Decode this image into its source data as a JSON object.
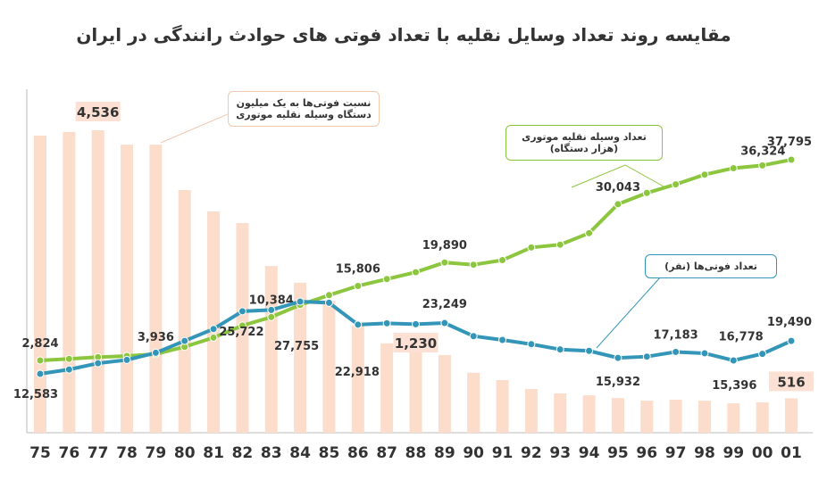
{
  "chart_data": {
    "type": "bar-line",
    "title": "مقایسه روند تعداد وسایل نقلیه با تعداد فوتی های حوادث رانندگی در ایران",
    "categories": [
      "75",
      "76",
      "77",
      "78",
      "79",
      "80",
      "81",
      "82",
      "83",
      "84",
      "85",
      "86",
      "87",
      "88",
      "89",
      "90",
      "91",
      "92",
      "93",
      "94",
      "95",
      "96",
      "97",
      "98",
      "99",
      "00",
      "01"
    ],
    "series": [
      {
        "name": "نسبت فوتی‌ها به یک میلیون دستگاه وسیله نقلیه موتوری",
        "kind": "bar",
        "color": "#fcdccb",
        "values": [
          4456,
          4510,
          4536,
          4320,
          4320,
          3640,
          3318,
          3145,
          2500,
          2250,
          1980,
          1605,
          1340,
          1230,
          1165,
          900,
          790,
          655,
          590,
          560,
          520,
          480,
          495,
          480,
          440,
          455,
          516
        ],
        "value_labels": [
          null,
          null,
          "4,536",
          null,
          null,
          null,
          null,
          null,
          null,
          null,
          null,
          null,
          null,
          "1,230",
          null,
          null,
          null,
          null,
          null,
          null,
          null,
          null,
          null,
          null,
          null,
          null,
          "516"
        ]
      },
      {
        "name": "تعداد وسیله نقلیه موتوری (هزار دستگاه)",
        "kind": "line",
        "color": "#8cc63f",
        "values": [
          2824,
          3100,
          3400,
          3600,
          3936,
          5200,
          6800,
          8900,
          10384,
          12500,
          14200,
          15806,
          17000,
          18200,
          19890,
          19500,
          20300,
          22500,
          23000,
          25000,
          30043,
          32000,
          33500,
          35200,
          36324,
          36800,
          37795
        ],
        "value_labels": [
          "2,824",
          null,
          null,
          null,
          "3,936",
          null,
          null,
          null,
          "10,384",
          null,
          null,
          "15,806",
          null,
          null,
          "19,890",
          null,
          null,
          null,
          null,
          null,
          "30,043",
          null,
          null,
          null,
          "36,324",
          null,
          "37,795"
        ]
      },
      {
        "name": "تعداد فوتی‌ها (نفر)",
        "kind": "line",
        "color": "#3395b8",
        "values": [
          12583,
          13500,
          14800,
          15500,
          17000,
          19500,
          22000,
          25722,
          26000,
          27755,
          27500,
          22918,
          23200,
          23000,
          23249,
          20500,
          19700,
          18800,
          17700,
          17400,
          15932,
          16200,
          17183,
          16900,
          15396,
          16778,
          19490
        ],
        "value_labels": [
          "12,583",
          null,
          null,
          null,
          null,
          null,
          null,
          "25,722",
          null,
          "27,755",
          null,
          "22,918",
          null,
          null,
          "23,249",
          null,
          null,
          null,
          null,
          null,
          "15,932",
          null,
          "17,183",
          null,
          "15,396",
          "16,778",
          "19,490"
        ]
      }
    ]
  }
}
